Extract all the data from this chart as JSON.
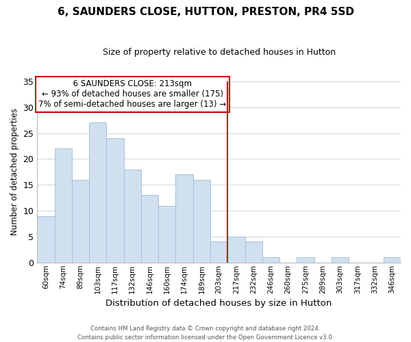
{
  "title": "6, SAUNDERS CLOSE, HUTTON, PRESTON, PR4 5SD",
  "subtitle": "Size of property relative to detached houses in Hutton",
  "xlabel": "Distribution of detached houses by size in Hutton",
  "ylabel": "Number of detached properties",
  "categories": [
    "60sqm",
    "74sqm",
    "89sqm",
    "103sqm",
    "117sqm",
    "132sqm",
    "146sqm",
    "160sqm",
    "174sqm",
    "189sqm",
    "203sqm",
    "217sqm",
    "232sqm",
    "246sqm",
    "260sqm",
    "275sqm",
    "289sqm",
    "303sqm",
    "317sqm",
    "332sqm",
    "346sqm"
  ],
  "values": [
    9,
    22,
    16,
    27,
    24,
    18,
    13,
    11,
    17,
    16,
    4,
    5,
    4,
    1,
    0,
    1,
    0,
    1,
    0,
    0,
    1
  ],
  "bar_color": "#d0e0f0",
  "bar_edge_color": "#a8c0d8",
  "highlight_index": 11,
  "vline_color": "#cc0000",
  "ylim": [
    0,
    35
  ],
  "yticks": [
    0,
    5,
    10,
    15,
    20,
    25,
    30,
    35
  ],
  "annotation_title": "6 SAUNDERS CLOSE: 213sqm",
  "annotation_line1": "← 93% of detached houses are smaller (175)",
  "annotation_line2": "7% of semi-detached houses are larger (13) →",
  "annotation_box_color": "#ffffff",
  "annotation_box_edge": "#cc0000",
  "footer1": "Contains HM Land Registry data © Crown copyright and database right 2024.",
  "footer2": "Contains public sector information licensed under the Open Government Licence v3.0.",
  "background_color": "#ffffff",
  "grid_color": "#d0d8e0"
}
